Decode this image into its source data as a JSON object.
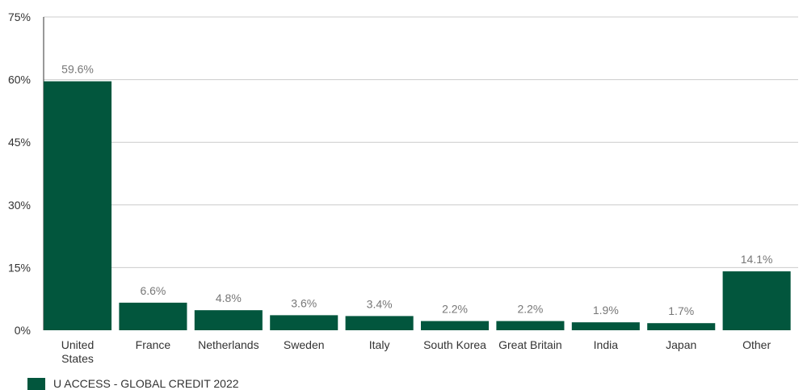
{
  "chart_data": {
    "type": "bar",
    "categories": [
      [
        "United",
        "States"
      ],
      [
        "France"
      ],
      [
        "Netherlands"
      ],
      [
        "Sweden"
      ],
      [
        "Italy"
      ],
      [
        "South Korea"
      ],
      [
        "Great Britain"
      ],
      [
        "India"
      ],
      [
        "Japan"
      ],
      [
        "Other"
      ]
    ],
    "series": [
      {
        "name": "U ACCESS - GLOBAL CREDIT 2022",
        "values": [
          59.6,
          6.6,
          4.8,
          3.6,
          3.4,
          2.2,
          2.2,
          1.9,
          1.7,
          14.1
        ],
        "labels": [
          "59.6%",
          "6.6%",
          "4.8%",
          "3.6%",
          "3.4%",
          "2.2%",
          "2.2%",
          "1.9%",
          "1.7%",
          "14.1%"
        ],
        "color": "#02563d"
      }
    ],
    "yticks": [
      "0%",
      "15%",
      "30%",
      "45%",
      "60%",
      "75%"
    ],
    "ylim": [
      0,
      75
    ],
    "grid": true,
    "legend_position": "bottom-left",
    "gridline_color": "#cccccc"
  }
}
